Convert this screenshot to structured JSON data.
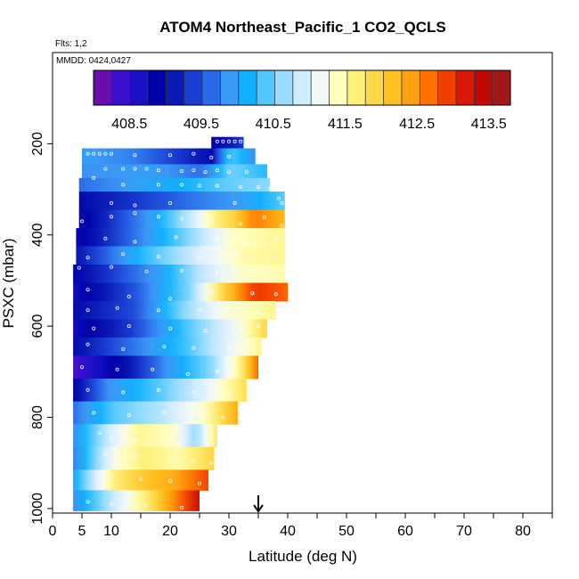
{
  "chart_data": {
    "type": "heatmap",
    "title": "ATOM4 Northeast_Pacific_1 CO2_QCLS",
    "flights_label": "Flts: 1,2",
    "date_label": "MMDD: 0424,0427",
    "xlabel": "Latitude (deg N)",
    "ylabel": "PSXC (mbar)",
    "xlim": [
      0,
      85
    ],
    "ylim": [
      1010,
      0
    ],
    "x_ticks": [
      0,
      5,
      10,
      20,
      30,
      40,
      50,
      60,
      70,
      80
    ],
    "x_minor_ticks": [
      15,
      25,
      35,
      45,
      55,
      65,
      75,
      85
    ],
    "y_ticks": [
      200,
      400,
      600,
      800,
      1000
    ],
    "marker_latitude": 35,
    "colorbar": {
      "min": 408.0,
      "max": 413.8,
      "tick_values": [
        408.5,
        409.5,
        410.5,
        411.5,
        412.5,
        413.5
      ],
      "tick_labels": [
        "408.5",
        "409.5",
        "410.5",
        "411.5",
        "412.5",
        "413.5"
      ],
      "colors": [
        "#6a0dad",
        "#3b0fd0",
        "#1a10c8",
        "#0000a8",
        "#0a1ab4",
        "#1a3ed2",
        "#2a6ae8",
        "#3b9af5",
        "#10b0ff",
        "#52c8ff",
        "#9adcff",
        "#d0ecff",
        "#f2f8f8",
        "#ffffc0",
        "#fff07a",
        "#ffd84a",
        "#ffc020",
        "#ffa010",
        "#ff7000",
        "#f04000",
        "#d81808",
        "#c00808",
        "#a01818"
      ]
    },
    "rows": [
      {
        "p_top": 185,
        "p_bot": 210,
        "lat_min": 27.0,
        "lat_max": 32.5,
        "stops": [
          [
            0,
            408.8
          ],
          [
            0.5,
            409.0
          ],
          [
            1,
            409.3
          ]
        ]
      },
      {
        "p_top": 210,
        "p_bot": 245,
        "lat_min": 5.0,
        "lat_max": 34.5,
        "stops": [
          [
            0,
            409.9
          ],
          [
            0.3,
            409.7
          ],
          [
            0.6,
            409.2
          ],
          [
            0.75,
            408.9
          ],
          [
            0.85,
            410.4
          ],
          [
            1,
            409.8
          ]
        ]
      },
      {
        "p_top": 245,
        "p_bot": 275,
        "lat_min": 5.0,
        "lat_max": 36.5,
        "stops": [
          [
            0,
            409.8
          ],
          [
            0.4,
            409.9
          ],
          [
            0.65,
            409.6
          ],
          [
            0.8,
            410.5
          ],
          [
            1,
            410.2
          ]
        ]
      },
      {
        "p_top": 275,
        "p_bot": 305,
        "lat_min": 4.5,
        "lat_max": 37.0,
        "stops": [
          [
            0,
            409.6
          ],
          [
            0.3,
            409.9
          ],
          [
            0.55,
            410.1
          ],
          [
            0.75,
            410.4
          ],
          [
            1,
            410.6
          ]
        ]
      },
      {
        "p_top": 305,
        "p_bot": 345,
        "lat_min": 4.5,
        "lat_max": 39.5,
        "stops": [
          [
            0,
            408.9
          ],
          [
            0.3,
            409.3
          ],
          [
            0.6,
            409.7
          ],
          [
            0.8,
            409.9
          ],
          [
            1,
            410.4
          ]
        ]
      },
      {
        "p_top": 345,
        "p_bot": 385,
        "lat_min": 4.5,
        "lat_max": 39.5,
        "stops": [
          [
            0,
            408.7
          ],
          [
            0.35,
            409.9
          ],
          [
            0.55,
            410.9
          ],
          [
            0.65,
            411.6
          ],
          [
            0.75,
            412.0
          ],
          [
            0.85,
            412.7
          ],
          [
            1,
            412.3
          ]
        ]
      },
      {
        "p_top": 385,
        "p_bot": 425,
        "lat_min": 4.0,
        "lat_max": 39.5,
        "stops": [
          [
            0,
            408.7
          ],
          [
            0.3,
            409.7
          ],
          [
            0.55,
            410.6
          ],
          [
            0.75,
            411.4
          ],
          [
            1,
            411.6
          ]
        ]
      },
      {
        "p_top": 425,
        "p_bot": 465,
        "lat_min": 4.0,
        "lat_max": 39.5,
        "stops": [
          [
            0,
            409.0
          ],
          [
            0.35,
            410.3
          ],
          [
            0.6,
            411.0
          ],
          [
            0.8,
            411.5
          ],
          [
            1,
            411.6
          ]
        ]
      },
      {
        "p_top": 465,
        "p_bot": 505,
        "lat_min": 3.5,
        "lat_max": 39.5,
        "stops": [
          [
            0,
            408.8
          ],
          [
            0.4,
            409.9
          ],
          [
            0.6,
            410.8
          ],
          [
            0.8,
            411.4
          ],
          [
            1,
            411.5
          ]
        ]
      },
      {
        "p_top": 505,
        "p_bot": 545,
        "lat_min": 3.5,
        "lat_max": 40.0,
        "stops": [
          [
            0,
            408.6
          ],
          [
            0.3,
            409.5
          ],
          [
            0.55,
            410.6
          ],
          [
            0.7,
            412.0
          ],
          [
            0.85,
            413.1
          ],
          [
            1,
            412.8
          ]
        ]
      },
      {
        "p_top": 545,
        "p_bot": 585,
        "lat_min": 3.5,
        "lat_max": 38.0,
        "stops": [
          [
            0,
            408.9
          ],
          [
            0.3,
            409.4
          ],
          [
            0.55,
            410.6
          ],
          [
            0.75,
            411.3
          ],
          [
            1,
            411.6
          ]
        ]
      },
      {
        "p_top": 585,
        "p_bot": 625,
        "lat_min": 3.5,
        "lat_max": 36.5,
        "stops": [
          [
            0,
            408.6
          ],
          [
            0.3,
            409.3
          ],
          [
            0.6,
            410.4
          ],
          [
            0.85,
            411.2
          ],
          [
            1,
            412.0
          ]
        ]
      },
      {
        "p_top": 625,
        "p_bot": 665,
        "lat_min": 3.5,
        "lat_max": 35.5,
        "stops": [
          [
            0,
            408.9
          ],
          [
            0.3,
            409.6
          ],
          [
            0.6,
            410.3
          ],
          [
            0.8,
            411.0
          ],
          [
            1,
            411.6
          ]
        ]
      },
      {
        "p_top": 665,
        "p_bot": 715,
        "lat_min": 3.5,
        "lat_max": 35.0,
        "stops": [
          [
            0,
            408.2
          ],
          [
            0.3,
            409.0
          ],
          [
            0.5,
            409.8
          ],
          [
            0.75,
            410.6
          ],
          [
            0.9,
            411.6
          ],
          [
            1,
            412.8
          ]
        ]
      },
      {
        "p_top": 715,
        "p_bot": 765,
        "lat_min": 3.5,
        "lat_max": 33.0,
        "stops": [
          [
            0,
            408.8
          ],
          [
            0.2,
            409.8
          ],
          [
            0.5,
            410.4
          ],
          [
            0.75,
            411.0
          ],
          [
            1,
            411.9
          ]
        ]
      },
      {
        "p_top": 765,
        "p_bot": 815,
        "lat_min": 3.5,
        "lat_max": 31.5,
        "stops": [
          [
            0,
            409.6
          ],
          [
            0.25,
            410.4
          ],
          [
            0.55,
            410.8
          ],
          [
            0.8,
            411.4
          ],
          [
            1,
            412.4
          ]
        ]
      },
      {
        "p_top": 815,
        "p_bot": 865,
        "lat_min": 3.5,
        "lat_max": 28.0,
        "stops": [
          [
            0,
            409.8
          ],
          [
            0.25,
            410.9
          ],
          [
            0.45,
            411.6
          ],
          [
            0.7,
            411.4
          ],
          [
            0.85,
            410.6
          ],
          [
            1,
            411.8
          ]
        ]
      },
      {
        "p_top": 865,
        "p_bot": 915,
        "lat_min": 3.5,
        "lat_max": 27.5,
        "stops": [
          [
            0,
            409.7
          ],
          [
            0.3,
            411.3
          ],
          [
            0.5,
            411.7
          ],
          [
            0.75,
            411.5
          ],
          [
            1,
            412.0
          ]
        ]
      },
      {
        "p_top": 915,
        "p_bot": 960,
        "lat_min": 3.5,
        "lat_max": 26.5,
        "stops": [
          [
            0,
            410.0
          ],
          [
            0.3,
            411.7
          ],
          [
            0.5,
            412.1
          ],
          [
            0.75,
            412.4
          ],
          [
            1,
            413.0
          ]
        ]
      },
      {
        "p_top": 960,
        "p_bot": 1005,
        "lat_min": 3.5,
        "lat_max": 25.0,
        "stops": [
          [
            0,
            409.8
          ],
          [
            0.3,
            410.8
          ],
          [
            0.6,
            411.8
          ],
          [
            0.85,
            412.8
          ],
          [
            1,
            413.4
          ]
        ]
      }
    ],
    "sample_points": [
      [
        28,
        195
      ],
      [
        29,
        195
      ],
      [
        30,
        195
      ],
      [
        31,
        195
      ],
      [
        32,
        195
      ],
      [
        6,
        222
      ],
      [
        7,
        222
      ],
      [
        8,
        222
      ],
      [
        9,
        222
      ],
      [
        10,
        222
      ],
      [
        14,
        225
      ],
      [
        20,
        225
      ],
      [
        24,
        222
      ],
      [
        27,
        230
      ],
      [
        30,
        228
      ],
      [
        9,
        255
      ],
      [
        12,
        255
      ],
      [
        14,
        255
      ],
      [
        16,
        255
      ],
      [
        18,
        258
      ],
      [
        22,
        260
      ],
      [
        24,
        258
      ],
      [
        26,
        262
      ],
      [
        28,
        258
      ],
      [
        30,
        262
      ],
      [
        33,
        262
      ],
      [
        7,
        275
      ],
      [
        12,
        290
      ],
      [
        18,
        290
      ],
      [
        22,
        290
      ],
      [
        25,
        292
      ],
      [
        28,
        292
      ],
      [
        32,
        295
      ],
      [
        35,
        295
      ],
      [
        37,
        298
      ],
      [
        39,
        330
      ],
      [
        38.5,
        320
      ],
      [
        20,
        330
      ],
      [
        14,
        335
      ],
      [
        10,
        330
      ],
      [
        31,
        330
      ],
      [
        5,
        370
      ],
      [
        10,
        360
      ],
      [
        14,
        352
      ],
      [
        18,
        360
      ],
      [
        22,
        365
      ],
      [
        27,
        370
      ],
      [
        32,
        375
      ],
      [
        36,
        362
      ],
      [
        39,
        380
      ],
      [
        9,
        408
      ],
      [
        14,
        415
      ],
      [
        21,
        405
      ],
      [
        28,
        408
      ],
      [
        33,
        420
      ],
      [
        38,
        410
      ],
      [
        6,
        450
      ],
      [
        12,
        442
      ],
      [
        18,
        448
      ],
      [
        25,
        450
      ],
      [
        31,
        445
      ],
      [
        37,
        448
      ],
      [
        4.5,
        472
      ],
      [
        10,
        470
      ],
      [
        16,
        480
      ],
      [
        22,
        478
      ],
      [
        28,
        482
      ],
      [
        34,
        480
      ],
      [
        38,
        490
      ],
      [
        6,
        520
      ],
      [
        13,
        535
      ],
      [
        20,
        540
      ],
      [
        27,
        525
      ],
      [
        34,
        528
      ],
      [
        38,
        530
      ],
      [
        6,
        565
      ],
      [
        11,
        560
      ],
      [
        18,
        565
      ],
      [
        25,
        565
      ],
      [
        31,
        565
      ],
      [
        35,
        568
      ],
      [
        7,
        605
      ],
      [
        13,
        600
      ],
      [
        20,
        605
      ],
      [
        26,
        610
      ],
      [
        32,
        605
      ],
      [
        35,
        600
      ],
      [
        6,
        640
      ],
      [
        12,
        650
      ],
      [
        19,
        645
      ],
      [
        24,
        648
      ],
      [
        30,
        650
      ],
      [
        33,
        655
      ],
      [
        5,
        690
      ],
      [
        11,
        695
      ],
      [
        17,
        695
      ],
      [
        23,
        705
      ],
      [
        28,
        700
      ],
      [
        6,
        740
      ],
      [
        12,
        745
      ],
      [
        18,
        740
      ],
      [
        24,
        745
      ],
      [
        30,
        750
      ],
      [
        7,
        790
      ],
      [
        13,
        795
      ],
      [
        19,
        790
      ],
      [
        25,
        795
      ],
      [
        29,
        800
      ],
      [
        8,
        835
      ],
      [
        10,
        845
      ],
      [
        14,
        850
      ],
      [
        20,
        850
      ],
      [
        26,
        855
      ],
      [
        9,
        880
      ],
      [
        14,
        885
      ],
      [
        20,
        890
      ],
      [
        24,
        895
      ],
      [
        27,
        900
      ],
      [
        10,
        930
      ],
      [
        15,
        935
      ],
      [
        20,
        940
      ],
      [
        25,
        945
      ],
      [
        6,
        985
      ],
      [
        10,
        990
      ],
      [
        16,
        995
      ],
      [
        22,
        998
      ]
    ]
  }
}
